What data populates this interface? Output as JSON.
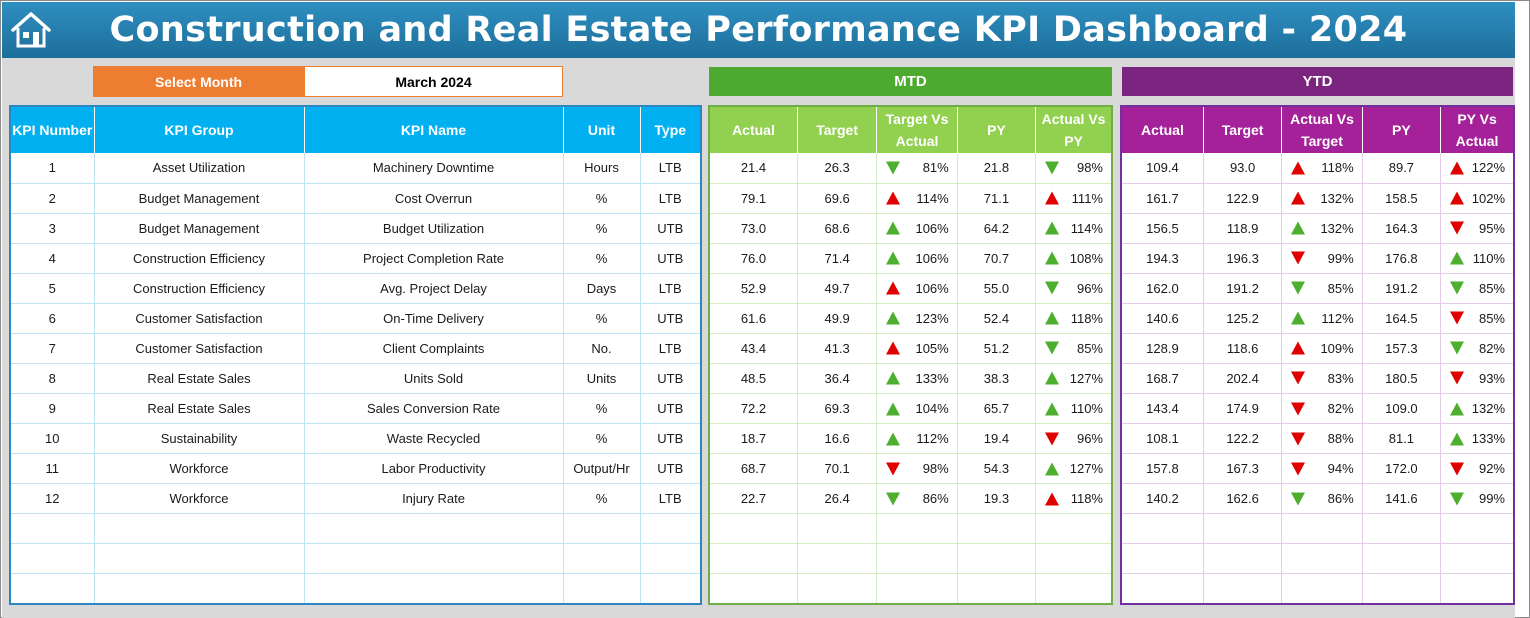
{
  "header": {
    "title": "Construction and Real Estate Performance KPI Dashboard - 2024",
    "icon": "home-icon"
  },
  "selector": {
    "label": "Select Month",
    "value": "March 2024"
  },
  "colors": {
    "up_green": "#4caf2e",
    "down_green": "#4caf2e",
    "up_red": "#e00000",
    "down_red": "#e00000"
  },
  "sections": {
    "mtd": "MTD",
    "ytd": "YTD"
  },
  "kpi_headers": [
    "KPI Number",
    "KPI Group",
    "KPI Name",
    "Unit",
    "Type"
  ],
  "mtd_headers": [
    "Actual",
    "Target",
    "Target Vs Actual",
    "PY",
    "Actual Vs PY"
  ],
  "ytd_headers": [
    "Actual",
    "Target",
    "Actual Vs Target",
    "PY",
    "PY Vs Actual"
  ],
  "rows": [
    {
      "num": "1",
      "group": "Asset Utilization",
      "name": "Machinery Downtime",
      "unit": "Hours",
      "type": "LTB",
      "mtd": {
        "actual": "21.4",
        "target": "26.3",
        "tva": "81%",
        "tva_dir": "down",
        "tva_color": "green",
        "py": "21.8",
        "avp": "98%",
        "avp_dir": "down",
        "avp_color": "green"
      },
      "ytd": {
        "actual": "109.4",
        "target": "93.0",
        "avt": "118%",
        "avt_dir": "up",
        "avt_color": "red",
        "py": "89.7",
        "pva": "122%",
        "pva_dir": "up",
        "pva_color": "red"
      }
    },
    {
      "num": "2",
      "group": "Budget Management",
      "name": "Cost Overrun",
      "unit": "%",
      "type": "LTB",
      "mtd": {
        "actual": "79.1",
        "target": "69.6",
        "tva": "114%",
        "tva_dir": "up",
        "tva_color": "red",
        "py": "71.1",
        "avp": "111%",
        "avp_dir": "up",
        "avp_color": "red"
      },
      "ytd": {
        "actual": "161.7",
        "target": "122.9",
        "avt": "132%",
        "avt_dir": "up",
        "avt_color": "red",
        "py": "158.5",
        "pva": "102%",
        "pva_dir": "up",
        "pva_color": "red"
      }
    },
    {
      "num": "3",
      "group": "Budget Management",
      "name": "Budget Utilization",
      "unit": "%",
      "type": "UTB",
      "mtd": {
        "actual": "73.0",
        "target": "68.6",
        "tva": "106%",
        "tva_dir": "up",
        "tva_color": "green",
        "py": "64.2",
        "avp": "114%",
        "avp_dir": "up",
        "avp_color": "green"
      },
      "ytd": {
        "actual": "156.5",
        "target": "118.9",
        "avt": "132%",
        "avt_dir": "up",
        "avt_color": "green",
        "py": "164.3",
        "pva": "95%",
        "pva_dir": "down",
        "pva_color": "red"
      }
    },
    {
      "num": "4",
      "group": "Construction Efficiency",
      "name": "Project Completion Rate",
      "unit": "%",
      "type": "UTB",
      "mtd": {
        "actual": "76.0",
        "target": "71.4",
        "tva": "106%",
        "tva_dir": "up",
        "tva_color": "green",
        "py": "70.7",
        "avp": "108%",
        "avp_dir": "up",
        "avp_color": "green"
      },
      "ytd": {
        "actual": "194.3",
        "target": "196.3",
        "avt": "99%",
        "avt_dir": "down",
        "avt_color": "red",
        "py": "176.8",
        "pva": "110%",
        "pva_dir": "up",
        "pva_color": "green"
      }
    },
    {
      "num": "5",
      "group": "Construction Efficiency",
      "name": "Avg. Project Delay",
      "unit": "Days",
      "type": "LTB",
      "mtd": {
        "actual": "52.9",
        "target": "49.7",
        "tva": "106%",
        "tva_dir": "up",
        "tva_color": "red",
        "py": "55.0",
        "avp": "96%",
        "avp_dir": "down",
        "avp_color": "green"
      },
      "ytd": {
        "actual": "162.0",
        "target": "191.2",
        "avt": "85%",
        "avt_dir": "down",
        "avt_color": "green",
        "py": "191.2",
        "pva": "85%",
        "pva_dir": "down",
        "pva_color": "green"
      }
    },
    {
      "num": "6",
      "group": "Customer Satisfaction",
      "name": "On-Time Delivery",
      "unit": "%",
      "type": "UTB",
      "mtd": {
        "actual": "61.6",
        "target": "49.9",
        "tva": "123%",
        "tva_dir": "up",
        "tva_color": "green",
        "py": "52.4",
        "avp": "118%",
        "avp_dir": "up",
        "avp_color": "green"
      },
      "ytd": {
        "actual": "140.6",
        "target": "125.2",
        "avt": "112%",
        "avt_dir": "up",
        "avt_color": "green",
        "py": "164.5",
        "pva": "85%",
        "pva_dir": "down",
        "pva_color": "red"
      }
    },
    {
      "num": "7",
      "group": "Customer Satisfaction",
      "name": "Client Complaints",
      "unit": "No.",
      "type": "LTB",
      "mtd": {
        "actual": "43.4",
        "target": "41.3",
        "tva": "105%",
        "tva_dir": "up",
        "tva_color": "red",
        "py": "51.2",
        "avp": "85%",
        "avp_dir": "down",
        "avp_color": "green"
      },
      "ytd": {
        "actual": "128.9",
        "target": "118.6",
        "avt": "109%",
        "avt_dir": "up",
        "avt_color": "red",
        "py": "157.3",
        "pva": "82%",
        "pva_dir": "down",
        "pva_color": "green"
      }
    },
    {
      "num": "8",
      "group": "Real Estate Sales",
      "name": "Units Sold",
      "unit": "Units",
      "type": "UTB",
      "mtd": {
        "actual": "48.5",
        "target": "36.4",
        "tva": "133%",
        "tva_dir": "up",
        "tva_color": "green",
        "py": "38.3",
        "avp": "127%",
        "avp_dir": "up",
        "avp_color": "green"
      },
      "ytd": {
        "actual": "168.7",
        "target": "202.4",
        "avt": "83%",
        "avt_dir": "down",
        "avt_color": "red",
        "py": "180.5",
        "pva": "93%",
        "pva_dir": "down",
        "pva_color": "red"
      }
    },
    {
      "num": "9",
      "group": "Real Estate Sales",
      "name": "Sales Conversion Rate",
      "unit": "%",
      "type": "UTB",
      "mtd": {
        "actual": "72.2",
        "target": "69.3",
        "tva": "104%",
        "tva_dir": "up",
        "tva_color": "green",
        "py": "65.7",
        "avp": "110%",
        "avp_dir": "up",
        "avp_color": "green"
      },
      "ytd": {
        "actual": "143.4",
        "target": "174.9",
        "avt": "82%",
        "avt_dir": "down",
        "avt_color": "red",
        "py": "109.0",
        "pva": "132%",
        "pva_dir": "up",
        "pva_color": "green"
      }
    },
    {
      "num": "10",
      "group": "Sustainability",
      "name": "Waste Recycled",
      "unit": "%",
      "type": "UTB",
      "mtd": {
        "actual": "18.7",
        "target": "16.6",
        "tva": "112%",
        "tva_dir": "up",
        "tva_color": "green",
        "py": "19.4",
        "avp": "96%",
        "avp_dir": "down",
        "avp_color": "red"
      },
      "ytd": {
        "actual": "108.1",
        "target": "122.2",
        "avt": "88%",
        "avt_dir": "down",
        "avt_color": "red",
        "py": "81.1",
        "pva": "133%",
        "pva_dir": "up",
        "pva_color": "green"
      }
    },
    {
      "num": "11",
      "group": "Workforce",
      "name": "Labor Productivity",
      "unit": "Output/Hr",
      "type": "UTB",
      "mtd": {
        "actual": "68.7",
        "target": "70.1",
        "tva": "98%",
        "tva_dir": "down",
        "tva_color": "red",
        "py": "54.3",
        "avp": "127%",
        "avp_dir": "up",
        "avp_color": "green"
      },
      "ytd": {
        "actual": "157.8",
        "target": "167.3",
        "avt": "94%",
        "avt_dir": "down",
        "avt_color": "red",
        "py": "172.0",
        "pva": "92%",
        "pva_dir": "down",
        "pva_color": "red"
      }
    },
    {
      "num": "12",
      "group": "Workforce",
      "name": "Injury Rate",
      "unit": "%",
      "type": "LTB",
      "mtd": {
        "actual": "22.7",
        "target": "26.4",
        "tva": "86%",
        "tva_dir": "down",
        "tva_color": "green",
        "py": "19.3",
        "avp": "118%",
        "avp_dir": "up",
        "avp_color": "red"
      },
      "ytd": {
        "actual": "140.2",
        "target": "162.6",
        "avt": "86%",
        "avt_dir": "down",
        "avt_color": "green",
        "py": "141.6",
        "pva": "99%",
        "pva_dir": "down",
        "pva_color": "green"
      }
    }
  ],
  "empty_rows": 3
}
